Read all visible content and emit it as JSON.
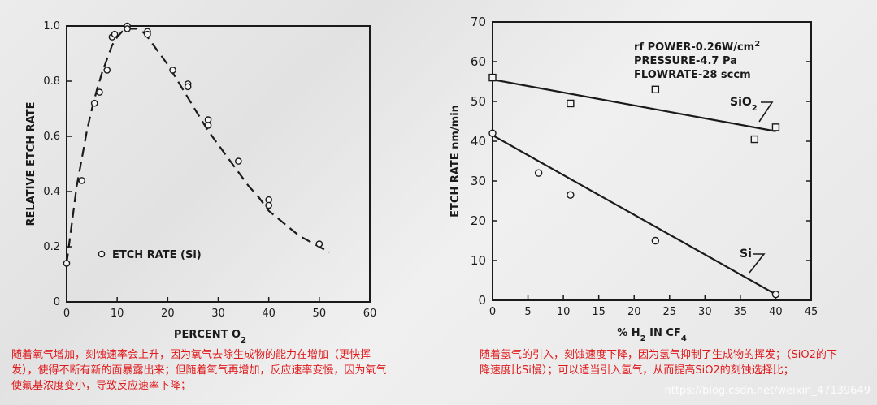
{
  "chart_data": [
    {
      "type": "line",
      "xlabel": "PERCENT O",
      "xlabel_sub": "2",
      "ylabel": "RELATIVE ETCH RATE",
      "xlim": [
        0,
        60
      ],
      "ylim": [
        0,
        1.0
      ],
      "x_ticks": [
        0,
        10,
        20,
        30,
        40,
        50,
        60
      ],
      "y_ticks": [
        0,
        0.2,
        0.4,
        0.6,
        0.8,
        1.0
      ],
      "y_tick_labels": [
        "0",
        "0.2",
        "0.4",
        "0.6",
        "0.8",
        "1.0"
      ],
      "legend_label": "ETCH RATE (Si)",
      "series": [
        {
          "name": "ETCH RATE (Si)",
          "points": [
            [
              0,
              0.14
            ],
            [
              3,
              0.44
            ],
            [
              5.5,
              0.72
            ],
            [
              6.5,
              0.76
            ],
            [
              8,
              0.84
            ],
            [
              9,
              0.96
            ],
            [
              9.5,
              0.97
            ],
            [
              12,
              1.0
            ],
            [
              12,
              0.99
            ],
            [
              16,
              0.98
            ],
            [
              16,
              0.97
            ],
            [
              21,
              0.84
            ],
            [
              24,
              0.79
            ],
            [
              24,
              0.78
            ],
            [
              28,
              0.66
            ],
            [
              28,
              0.64
            ],
            [
              34,
              0.51
            ],
            [
              40,
              0.37
            ],
            [
              40,
              0.35
            ],
            [
              50,
              0.21
            ]
          ],
          "curve": [
            [
              0,
              0.14
            ],
            [
              1,
              0.28
            ],
            [
              2,
              0.42
            ],
            [
              3,
              0.52
            ],
            [
              4,
              0.62
            ],
            [
              5,
              0.7
            ],
            [
              6,
              0.77
            ],
            [
              7,
              0.83
            ],
            [
              8,
              0.88
            ],
            [
              9,
              0.93
            ],
            [
              10,
              0.96
            ],
            [
              11,
              0.98
            ],
            [
              12,
              0.99
            ],
            [
              13,
              0.99
            ],
            [
              14,
              0.99
            ],
            [
              15,
              0.98
            ],
            [
              16,
              0.96
            ],
            [
              18,
              0.91
            ],
            [
              20,
              0.86
            ],
            [
              22,
              0.8
            ],
            [
              24,
              0.74
            ],
            [
              26,
              0.68
            ],
            [
              28,
              0.62
            ],
            [
              30,
              0.57
            ],
            [
              32,
              0.52
            ],
            [
              34,
              0.47
            ],
            [
              36,
              0.42
            ],
            [
              38,
              0.38
            ],
            [
              40,
              0.33
            ],
            [
              42,
              0.3
            ],
            [
              44,
              0.27
            ],
            [
              46,
              0.24
            ],
            [
              48,
              0.22
            ],
            [
              50,
              0.2
            ],
            [
              52,
              0.18
            ]
          ]
        }
      ]
    },
    {
      "type": "line",
      "xlabel": "% H",
      "xlabel_sub": "2",
      "xlabel_mid": " IN CF",
      "xlabel_sub2": "4",
      "ylabel": "ETCH RATE  nm/min",
      "xlim": [
        0,
        45
      ],
      "ylim": [
        0,
        70
      ],
      "x_ticks": [
        0,
        5,
        10,
        15,
        20,
        25,
        30,
        35,
        40,
        45
      ],
      "y_ticks": [
        0,
        10,
        20,
        30,
        40,
        50,
        60,
        70
      ],
      "annotations": {
        "line1": "rf POWER-0.26W/cm",
        "line1_sup": "2",
        "line2": "PRESSURE-4.7 Pa",
        "line3": "FLOWRATE-28 sccm"
      },
      "series": [
        {
          "name": "SiO",
          "name_sub": "2",
          "marker": "square",
          "points": [
            [
              0,
              56
            ],
            [
              11,
              49.5
            ],
            [
              23,
              53
            ],
            [
              37,
              40.5
            ],
            [
              40,
              43.5
            ]
          ],
          "fit": [
            [
              0,
              55.5
            ],
            [
              40,
              42.5
            ]
          ]
        },
        {
          "name": "Si",
          "marker": "circle",
          "points": [
            [
              0,
              42
            ],
            [
              6.5,
              32
            ],
            [
              11,
              26.5
            ],
            [
              23,
              15
            ],
            [
              40,
              1.5
            ]
          ],
          "fit": [
            [
              0,
              41.5
            ],
            [
              40,
              1.5
            ]
          ]
        }
      ]
    }
  ],
  "captions": {
    "left": "随着氧气增加，刻蚀速率会上升，因为氧气去除生成物的能力在增加（更快挥发），使得不断有新的面暴露出来；但随着氧气再增加，反应速率变慢，因为氧气使氟基浓度变小，导致反应速率下降；",
    "right": "随着氢气的引入，刻蚀速度下降，因为氢气抑制了生成物的挥发；（SiO2的下降速度比Si慢）；可以适当引入氢气，从而提高SiO2的刻蚀选择比；"
  },
  "watermark": "https://blog.csdn.net/weixin_47139649",
  "colors": {
    "ink": "#1a1a1a",
    "caption": "#e0191b",
    "background": "#e8e8e8"
  }
}
